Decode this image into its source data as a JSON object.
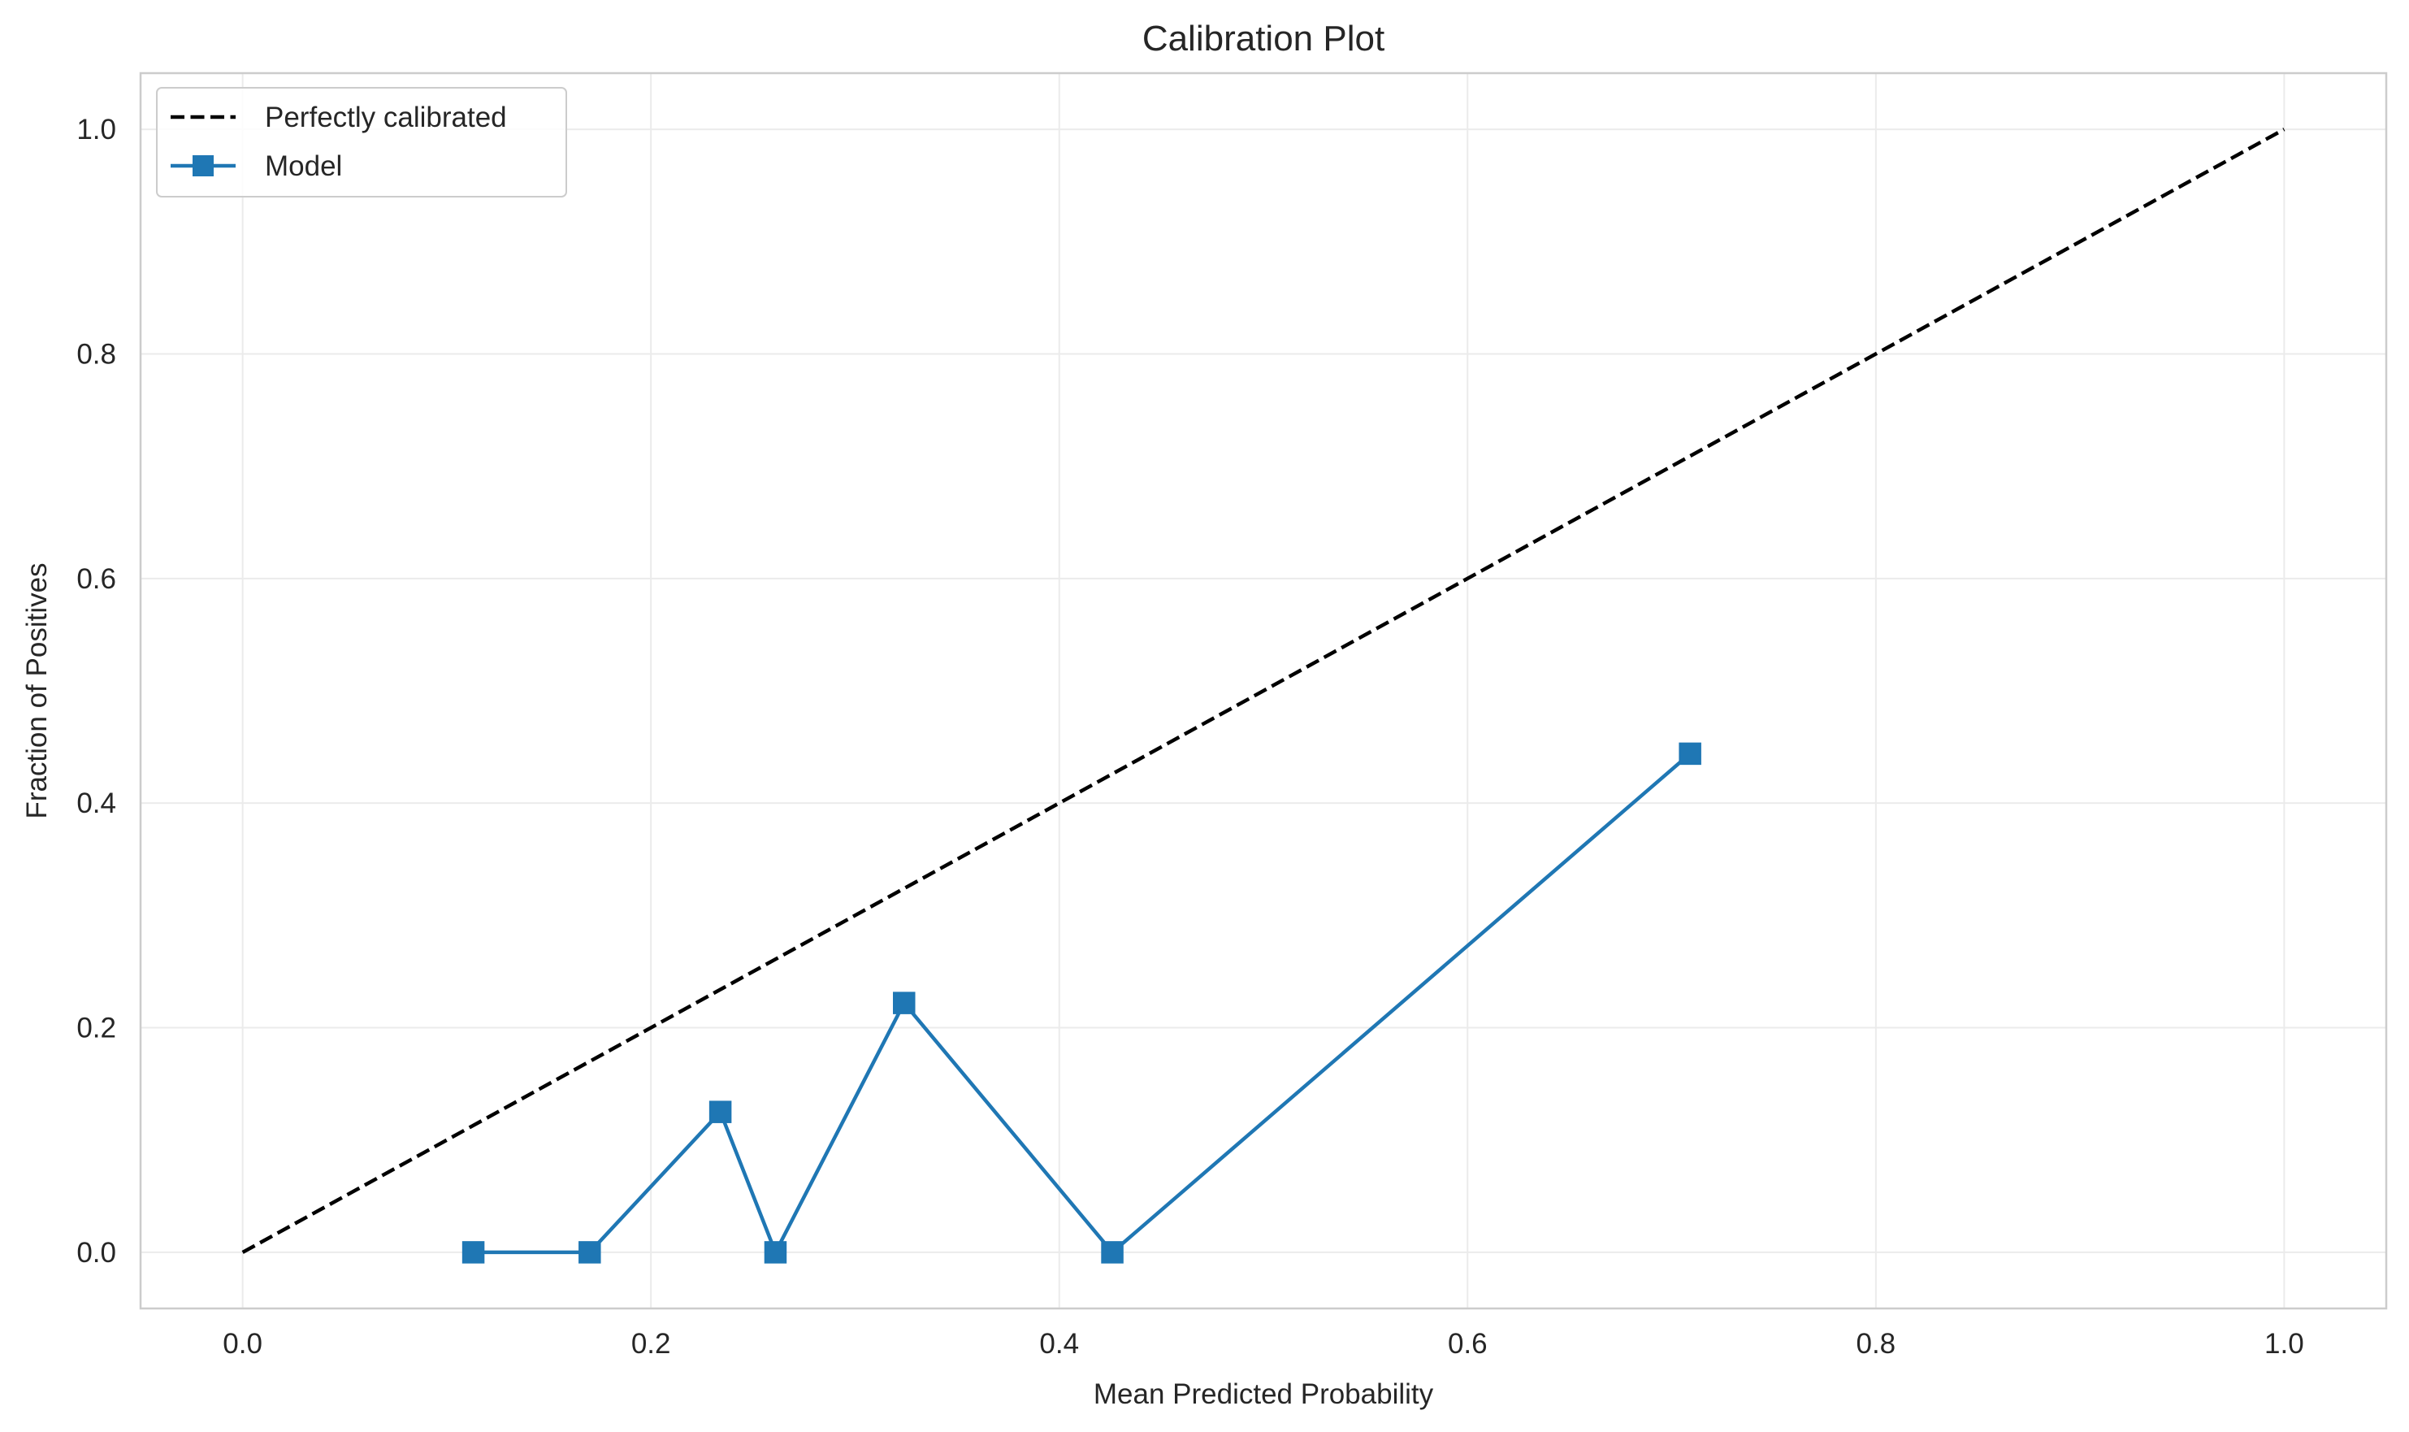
{
  "chart_data": {
    "type": "line",
    "title": "Calibration Plot",
    "xlabel": "Mean Predicted Probability",
    "ylabel": "Fraction of Positives",
    "xlim": [
      -0.05,
      1.05
    ],
    "ylim": [
      -0.05,
      1.05
    ],
    "xticks": [
      0.0,
      0.2,
      0.4,
      0.6,
      0.8,
      1.0
    ],
    "yticks": [
      0.0,
      0.2,
      0.4,
      0.6,
      0.8,
      1.0
    ],
    "xtick_labels": [
      "0.0",
      "0.2",
      "0.4",
      "0.6",
      "0.8",
      "1.0"
    ],
    "ytick_labels": [
      "0.0",
      "0.2",
      "0.4",
      "0.6",
      "0.8",
      "1.0"
    ],
    "grid": true,
    "legend_position": "top-left",
    "series": [
      {
        "name": "Perfectly calibrated",
        "style": "dashed",
        "color": "#000000",
        "marker": "none",
        "x": [
          0.0,
          1.0
        ],
        "y": [
          0.0,
          1.0
        ]
      },
      {
        "name": "Model",
        "style": "solid",
        "color": "#1f77b4",
        "marker": "square",
        "x": [
          0.113,
          0.17,
          0.234,
          0.261,
          0.324,
          0.426,
          0.709
        ],
        "y": [
          0.0,
          0.0,
          0.125,
          0.0,
          0.222,
          0.0,
          0.444
        ]
      }
    ]
  }
}
